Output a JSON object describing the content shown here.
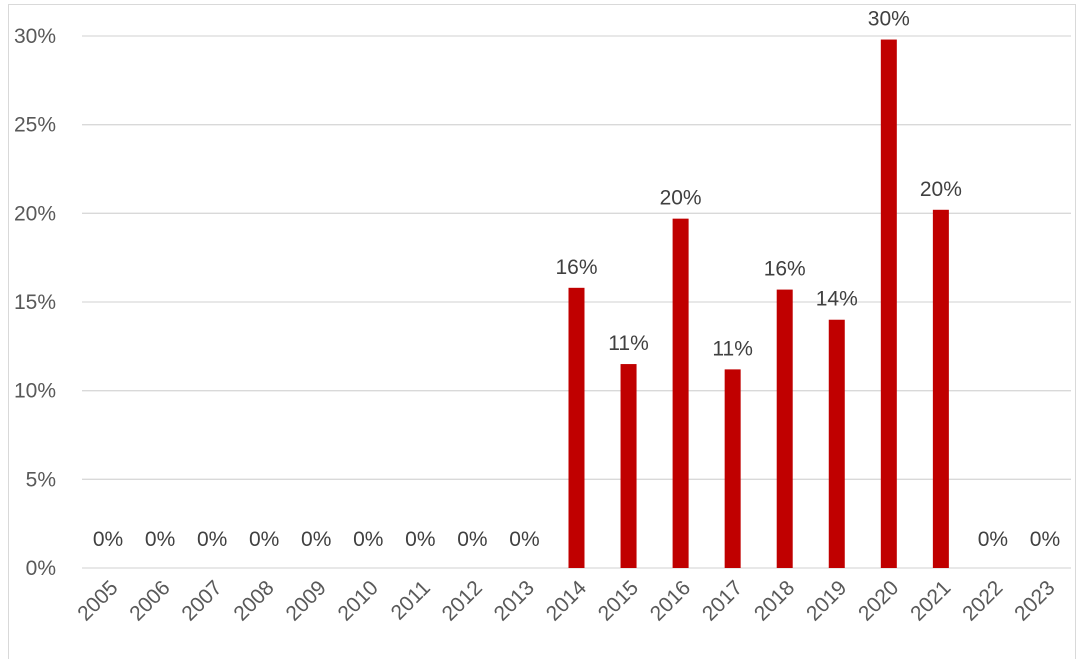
{
  "chart_data": {
    "type": "bar",
    "categories": [
      "2005",
      "2006",
      "2007",
      "2008",
      "2009",
      "2010",
      "2011",
      "2012",
      "2013",
      "2014",
      "2015",
      "2016",
      "2017",
      "2018",
      "2019",
      "2020",
      "2021",
      "2022",
      "2023"
    ],
    "values": [
      0,
      0,
      0,
      0,
      0,
      0,
      0,
      0,
      0,
      15.8,
      11.5,
      19.7,
      11.2,
      15.7,
      14.0,
      29.8,
      20.2,
      0,
      0
    ],
    "data_labels": [
      "0%",
      "0%",
      "0%",
      "0%",
      "0%",
      "0%",
      "0%",
      "0%",
      "0%",
      "16%",
      "11%",
      "20%",
      "11%",
      "16%",
      "14%",
      "30%",
      "20%",
      "0%",
      "0%"
    ],
    "yticks": [
      0,
      5,
      10,
      15,
      20,
      25,
      30
    ],
    "ytick_labels": [
      "0%",
      "5%",
      "10%",
      "15%",
      "20%",
      "25%",
      "30%"
    ],
    "ylim": [
      0,
      30
    ],
    "title": "",
    "xlabel": "",
    "ylabel": "",
    "grid": true,
    "legend": "none",
    "bar_color": "#c00000"
  }
}
